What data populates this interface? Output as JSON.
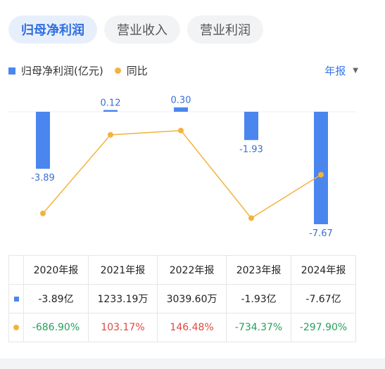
{
  "tabs": [
    {
      "label": "归母净利润"
    },
    {
      "label": "营业收入"
    },
    {
      "label": "营业利润"
    }
  ],
  "legend": {
    "series1": "归母净利润(亿元)",
    "series2": "同比"
  },
  "period_selector": {
    "label": "年报",
    "arrow": "▼"
  },
  "colors": {
    "bar": "#4a86ee",
    "line": "#f2b33d",
    "negative": "#25a05a",
    "positive": "#e2483d"
  },
  "chart_data": {
    "type": "bar",
    "categories": [
      "2020年报",
      "2021年报",
      "2022年报",
      "2023年报",
      "2024年报"
    ],
    "series": [
      {
        "name": "归母净利润(亿元)",
        "type": "bar",
        "values": [
          -3.89,
          0.12,
          0.3,
          -1.93,
          -7.67
        ],
        "labels": [
          "-3.89",
          "0.12",
          "0.30",
          "-1.93",
          "-7.67"
        ]
      },
      {
        "name": "同比",
        "type": "line",
        "values": [
          -686.9,
          103.17,
          146.48,
          -734.37,
          -297.9
        ]
      }
    ],
    "legend": "top-left"
  },
  "table": {
    "headers": [
      "2020年报",
      "2021年报",
      "2022年报",
      "2023年报",
      "2024年报"
    ],
    "profit_row": [
      "-3.89亿",
      "1233.19万",
      "3039.60万",
      "-1.93亿",
      "-7.67亿"
    ],
    "yoy_row": [
      "-686.90%",
      "103.17%",
      "146.48%",
      "-734.37%",
      "-297.90%"
    ]
  }
}
